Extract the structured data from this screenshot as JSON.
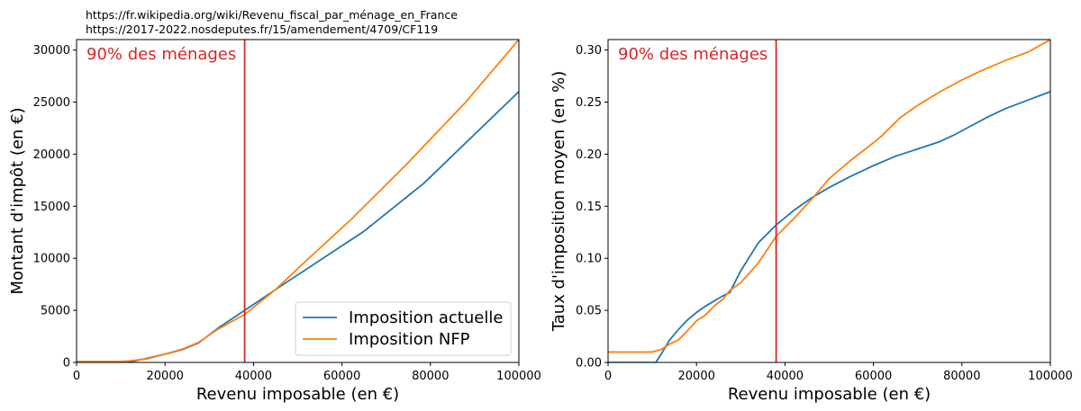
{
  "sources": [
    "https://fr.wikipedia.org/wiki/Revenu_fiscal_par_ménage_en_France",
    "https://2017-2022.nosdeputes.fr/15/amendement/4709/CF119"
  ],
  "chart_data": [
    {
      "type": "line",
      "title": "",
      "xlabel": "Revenu imposable (en €)",
      "ylabel": "Montant d'impôt (en €)",
      "xlim": [
        0,
        100000
      ],
      "ylim": [
        0,
        31000
      ],
      "xticks": [
        0,
        20000,
        40000,
        60000,
        80000,
        100000
      ],
      "yticks": [
        0,
        5000,
        10000,
        15000,
        20000,
        25000,
        30000
      ],
      "grid": false,
      "legend": "lower-right",
      "vline": {
        "x": 38000,
        "color": "#d62728",
        "label": "90% des ménages"
      },
      "series": [
        {
          "name": "Imposition actuelle",
          "color": "#1f77b4",
          "x": [
            0,
            10800,
            12000,
            15000,
            18000,
            21000,
            24000,
            27500,
            32000,
            38000,
            45000,
            55000,
            65000,
            78500,
            100000
          ],
          "y": [
            0,
            0,
            50,
            300,
            600,
            900,
            1250,
            1850,
            3300,
            5000,
            7000,
            9800,
            12600,
            17200,
            26000
          ]
        },
        {
          "name": "Imposition NFP",
          "color": "#ff7f0e",
          "x": [
            0,
            10000,
            12000,
            16000,
            20000,
            24000,
            27500,
            32000,
            38000,
            45000,
            52000,
            62000,
            75000,
            88000,
            100000
          ],
          "y": [
            100,
            100,
            150,
            350,
            800,
            1300,
            1900,
            3200,
            4600,
            7000,
            9800,
            13700,
            19200,
            25000,
            31000
          ]
        }
      ]
    },
    {
      "type": "line",
      "title": "",
      "xlabel": "Revenu imposable (en €)",
      "ylabel": "Taux d'imposition moyen (en %)",
      "xlim": [
        0,
        100000
      ],
      "ylim": [
        0,
        0.31
      ],
      "xticks": [
        0,
        20000,
        40000,
        60000,
        80000,
        100000
      ],
      "yticks": [
        0,
        0.05,
        0.1,
        0.15,
        0.2,
        0.25,
        0.3
      ],
      "ytick_labels": [
        "0.00",
        "0.05",
        "0.10",
        "0.15",
        "0.20",
        "0.25",
        "0.30"
      ],
      "grid": false,
      "vline": {
        "x": 38000,
        "color": "#d62728",
        "label": "90% des ménages"
      },
      "series": [
        {
          "name": "Imposition actuelle",
          "color": "#1f77b4",
          "x": [
            0,
            10800,
            12000,
            14000,
            16000,
            18000,
            20000,
            22000,
            24000,
            26000,
            27500,
            30000,
            34000,
            38000,
            42000,
            46000,
            50000,
            55000,
            60000,
            65000,
            70000,
            75000,
            78500,
            82000,
            86000,
            90000,
            95000,
            100000
          ],
          "y": [
            0,
            0,
            0.008,
            0.022,
            0.032,
            0.041,
            0.048,
            0.054,
            0.059,
            0.064,
            0.067,
            0.088,
            0.115,
            0.132,
            0.146,
            0.158,
            0.168,
            0.179,
            0.189,
            0.198,
            0.205,
            0.212,
            0.219,
            0.227,
            0.236,
            0.244,
            0.252,
            0.26
          ]
        },
        {
          "name": "Imposition NFP",
          "color": "#ff7f0e",
          "x": [
            0,
            10000,
            12000,
            14000,
            16000,
            18000,
            20000,
            22000,
            24000,
            26000,
            27500,
            30000,
            34000,
            38000,
            42000,
            46000,
            50000,
            55000,
            60000,
            62000,
            66000,
            70000,
            75000,
            80000,
            85000,
            90000,
            95000,
            100000
          ],
          "y": [
            0.01,
            0.01,
            0.0125,
            0.0178,
            0.0219,
            0.0306,
            0.04,
            0.0455,
            0.0542,
            0.0608,
            0.069,
            0.0767,
            0.0956,
            0.1211,
            0.1381,
            0.1565,
            0.1765,
            0.1945,
            0.2109,
            0.218,
            0.2348,
            0.2468,
            0.2598,
            0.2712,
            0.2812,
            0.2902,
            0.2981,
            0.31
          ]
        }
      ]
    }
  ]
}
